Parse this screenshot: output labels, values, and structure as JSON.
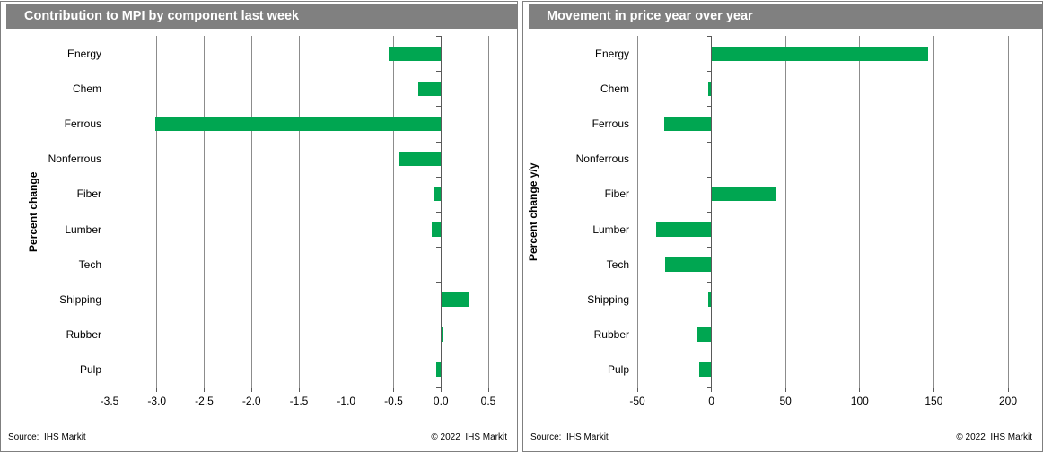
{
  "colors": {
    "bar_green": "#00A651",
    "titlebar_gray": "#808080",
    "gridline_gray": "#8C8C8C",
    "axis_gray": "#595959",
    "panel_border_gray": "#7F7F7F",
    "title_text": "#FFFFFF",
    "label_text": "#000000"
  },
  "footer": {
    "source": "Source:  IHS Markit",
    "copyright": "© 2022  IHS Markit"
  },
  "chart_data": [
    {
      "type": "bar",
      "orientation": "horizontal",
      "title": "Contribution to MPI by component last week",
      "xlabel": "",
      "ylabel": "Percent change",
      "categories": [
        "Energy",
        "Chem",
        "Ferrous",
        "Nonferrous",
        "Fiber",
        "Lumber",
        "Tech",
        "Shipping",
        "Rubber",
        "Pulp"
      ],
      "values": [
        -0.55,
        -0.24,
        -3.02,
        -0.44,
        -0.07,
        -0.1,
        0,
        0.29,
        0.02,
        -0.05
      ],
      "xlim": [
        -3.5,
        0.5
      ],
      "xticks": [
        -3.5,
        -3.0,
        -2.5,
        -2.0,
        -1.5,
        -1.0,
        -0.5,
        0.0,
        0.5
      ],
      "xtick_labels": [
        "-3.5",
        "-3.0",
        "-2.5",
        "-2.0",
        "-1.5",
        "-1.0",
        "-0.5",
        "0.0",
        "0.5"
      ],
      "grid": true,
      "legend": false
    },
    {
      "type": "bar",
      "orientation": "horizontal",
      "title": "Movement in price year over year",
      "xlabel": "",
      "ylabel": "Percent change y/y",
      "categories": [
        "Energy",
        "Chem",
        "Ferrous",
        "Nonferrous",
        "Fiber",
        "Lumber",
        "Tech",
        "Shipping",
        "Rubber",
        "Pulp"
      ],
      "values": [
        146,
        -2,
        -32,
        0,
        43,
        -37,
        -31,
        -2,
        -10,
        -8
      ],
      "xlim": [
        -50,
        200
      ],
      "xticks": [
        -50,
        0,
        50,
        100,
        150,
        200
      ],
      "xtick_labels": [
        "-50",
        "0",
        "50",
        "100",
        "150",
        "200"
      ],
      "grid": true,
      "legend": false
    }
  ]
}
